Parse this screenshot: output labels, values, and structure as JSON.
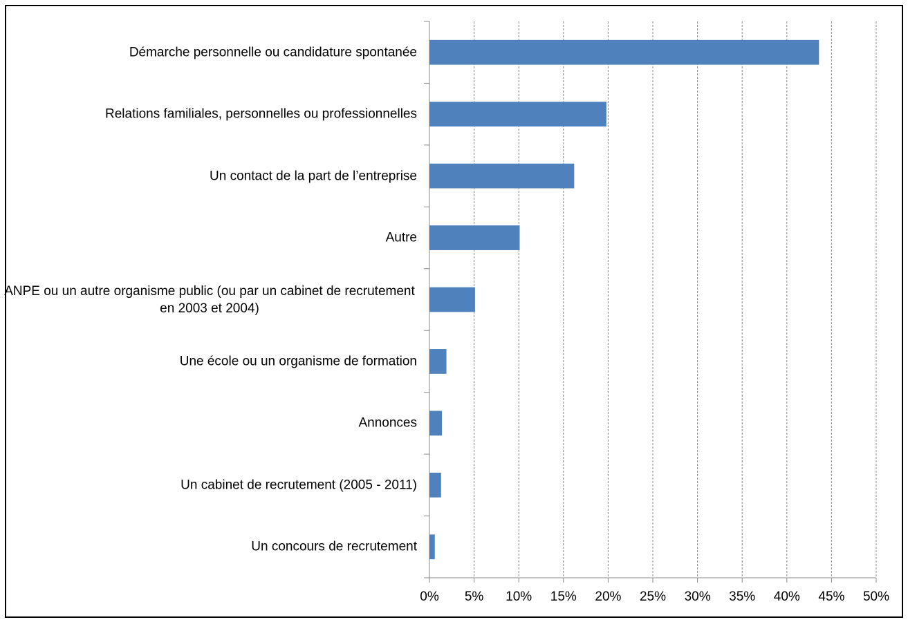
{
  "chart_data": {
    "type": "bar",
    "orientation": "horizontal",
    "categories": [
      "Démarche personnelle ou candidature spontanée",
      "Relations familiales, personnelles ou professionnelles",
      "Un contact de la part de l’entreprise",
      "Autre",
      "ANPE ou un autre organisme public (ou par un cabinet de recrutement en 2003 et 2004)",
      "Une école ou un organisme de formation",
      "Annonces",
      "Un cabinet de recrutement (2005 - 2011)",
      "Un concours de recrutement"
    ],
    "values": [
      43.6,
      19.8,
      16.2,
      10.1,
      5.1,
      1.9,
      1.4,
      1.3,
      0.6
    ],
    "color": "#4f81bd",
    "xlim": [
      0,
      50
    ],
    "xticks": [
      {
        "value": 0,
        "label": "0%"
      },
      {
        "value": 5,
        "label": "5%"
      },
      {
        "value": 10,
        "label": "10%"
      },
      {
        "value": 15,
        "label": "15%"
      },
      {
        "value": 20,
        "label": "20%"
      },
      {
        "value": 25,
        "label": "25%"
      },
      {
        "value": 30,
        "label": "30%"
      },
      {
        "value": 35,
        "label": "35%"
      },
      {
        "value": 40,
        "label": "40%"
      },
      {
        "value": 45,
        "label": "45%"
      },
      {
        "value": 50,
        "label": "50%"
      }
    ],
    "grid": true
  }
}
